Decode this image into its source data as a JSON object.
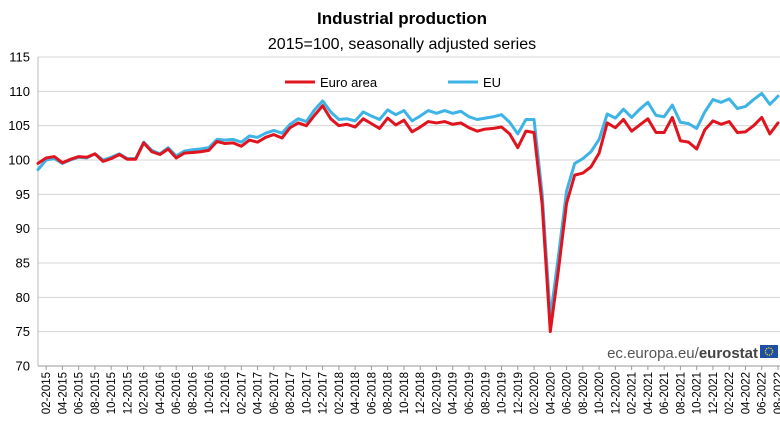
{
  "chart_data": {
    "type": "line",
    "title": "Industrial production",
    "subtitle": "2015=100, seasonally adjusted series",
    "xlabel": "",
    "ylabel": "",
    "ylim": [
      70,
      115
    ],
    "yticks": [
      70,
      75,
      80,
      85,
      90,
      95,
      100,
      105,
      110,
      115
    ],
    "grid": "horizontal",
    "legend_position": "top-center",
    "source_prefix": "ec.europa.eu/",
    "source_brand": "eurostat",
    "x": [
      "01-2015",
      "02-2015",
      "03-2015",
      "04-2015",
      "05-2015",
      "06-2015",
      "07-2015",
      "08-2015",
      "09-2015",
      "10-2015",
      "11-2015",
      "12-2015",
      "01-2016",
      "02-2016",
      "03-2016",
      "04-2016",
      "05-2016",
      "06-2016",
      "07-2016",
      "08-2016",
      "09-2016",
      "10-2016",
      "11-2016",
      "12-2016",
      "01-2017",
      "02-2017",
      "03-2017",
      "04-2017",
      "05-2017",
      "06-2017",
      "07-2017",
      "08-2017",
      "09-2017",
      "10-2017",
      "11-2017",
      "12-2017",
      "01-2018",
      "02-2018",
      "03-2018",
      "04-2018",
      "05-2018",
      "06-2018",
      "07-2018",
      "08-2018",
      "09-2018",
      "10-2018",
      "11-2018",
      "12-2018",
      "01-2019",
      "02-2019",
      "03-2019",
      "04-2019",
      "05-2019",
      "06-2019",
      "07-2019",
      "08-2019",
      "09-2019",
      "10-2019",
      "11-2019",
      "12-2019",
      "01-2020",
      "02-2020",
      "03-2020",
      "04-2020",
      "05-2020",
      "06-2020",
      "07-2020",
      "08-2020",
      "09-2020",
      "10-2020",
      "11-2020",
      "12-2020",
      "01-2021",
      "02-2021",
      "03-2021",
      "04-2021",
      "05-2021",
      "06-2021",
      "07-2021",
      "08-2021",
      "09-2021",
      "10-2021",
      "11-2021",
      "12-2021",
      "01-2022",
      "02-2022",
      "03-2022",
      "04-2022",
      "05-2022",
      "06-2022",
      "07-2022",
      "08-2022"
    ],
    "x_tick_labels": [
      "02-2015",
      "04-2015",
      "06-2015",
      "08-2015",
      "10-2015",
      "12-2015",
      "02-2016",
      "04-2016",
      "06-2016",
      "08-2016",
      "10-2016",
      "12-2016",
      "02-2017",
      "04-2017",
      "06-2017",
      "08-2017",
      "10-2017",
      "12-2017",
      "02-2018",
      "04-2018",
      "06-2018",
      "08-2018",
      "10-2018",
      "12-2018",
      "02-2019",
      "04-2019",
      "06-2019",
      "08-2019",
      "10-2019",
      "12-2019",
      "02-2020",
      "04-2020",
      "06-2020",
      "08-2020",
      "10-2020",
      "12-2020",
      "02-2021",
      "04-2021",
      "06-2021",
      "08-2021",
      "10-2021",
      "12-2021",
      "02-2022",
      "04-2022",
      "06-2022",
      "08-2022"
    ],
    "series": [
      {
        "name": "Euro area",
        "color": "#e0141e",
        "values": [
          99.5,
          100.3,
          100.5,
          99.6,
          100.1,
          100.5,
          100.4,
          100.9,
          99.8,
          100.2,
          100.8,
          100.1,
          100.1,
          102.5,
          101.2,
          100.8,
          101.6,
          100.3,
          101.0,
          101.1,
          101.2,
          101.4,
          102.7,
          102.4,
          102.5,
          102.0,
          102.9,
          102.6,
          103.3,
          103.7,
          103.2,
          104.7,
          105.4,
          105.0,
          106.5,
          107.9,
          106.0,
          105.0,
          105.2,
          104.8,
          106.0,
          105.3,
          104.6,
          106.1,
          105.1,
          105.8,
          104.1,
          104.8,
          105.6,
          105.4,
          105.6,
          105.2,
          105.4,
          104.7,
          104.2,
          104.5,
          104.6,
          104.8,
          103.8,
          101.8,
          104.2,
          104.0,
          93.5,
          75.0,
          84.0,
          93.7,
          97.8,
          98.1,
          99.0,
          101.0,
          105.4,
          104.7,
          105.9,
          104.2,
          105.1,
          106.0,
          104.0,
          104.0,
          106.2,
          102.8,
          102.6,
          101.6,
          104.4,
          105.7,
          105.2,
          105.6,
          104.0,
          104.1,
          105.0,
          106.2,
          103.8,
          105.4
        ]
      },
      {
        "name": "EU",
        "color": "#3eb3e6",
        "values": [
          98.6,
          100.0,
          100.2,
          99.5,
          100.0,
          100.4,
          100.3,
          100.9,
          100.0,
          100.4,
          100.9,
          100.2,
          100.2,
          102.6,
          101.4,
          100.9,
          101.8,
          100.6,
          101.3,
          101.5,
          101.6,
          101.8,
          103.0,
          102.9,
          103.0,
          102.6,
          103.5,
          103.3,
          103.9,
          104.3,
          103.9,
          105.2,
          106.0,
          105.6,
          107.3,
          108.6,
          107.0,
          105.9,
          106.0,
          105.7,
          107.0,
          106.4,
          105.9,
          107.3,
          106.6,
          107.2,
          105.7,
          106.4,
          107.2,
          106.8,
          107.2,
          106.8,
          107.1,
          106.3,
          105.9,
          106.1,
          106.3,
          106.6,
          105.5,
          103.8,
          105.9,
          105.9,
          95.0,
          77.0,
          86.0,
          95.5,
          99.5,
          100.2,
          101.2,
          103.0,
          106.7,
          106.1,
          107.4,
          106.2,
          107.4,
          108.4,
          106.5,
          106.3,
          108.0,
          105.5,
          105.3,
          104.6,
          107.0,
          108.8,
          108.4,
          108.9,
          107.5,
          107.8,
          108.8,
          109.7,
          108.1,
          109.3
        ]
      }
    ]
  }
}
